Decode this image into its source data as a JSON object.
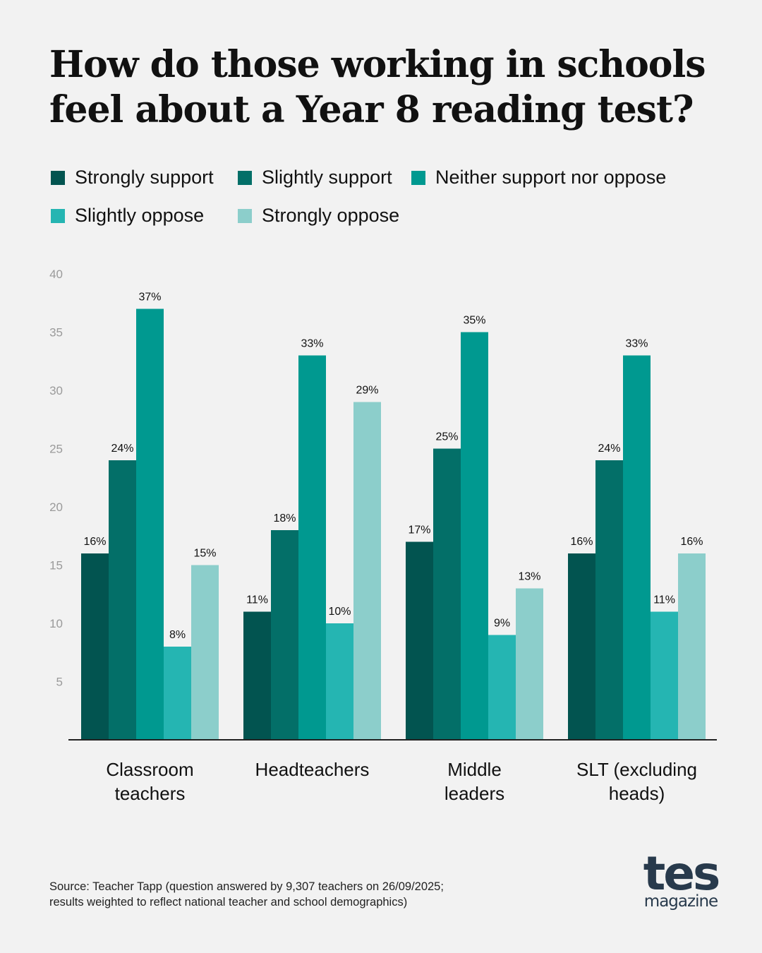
{
  "title_lines": [
    "How do those working in schools",
    "feel about a Year 8 reading test?"
  ],
  "source_lines": [
    "Source: Teacher Tapp (question answered by 9,307 teachers on 26/09/2025;",
    "results weighted to reflect national teacher and school demographics)"
  ],
  "logo": {
    "main": "tes",
    "sub": "magazine",
    "color": "#283a4c"
  },
  "chart_data": {
    "type": "bar",
    "title": "How do those working in schools feel about a Year 8 reading test?",
    "xlabel": "",
    "ylabel": "",
    "ylim": [
      0,
      40
    ],
    "yticks": [
      5,
      10,
      15,
      20,
      25,
      30,
      35,
      40
    ],
    "grid": false,
    "legend_position": "top",
    "categories": [
      [
        "Classroom",
        "teachers"
      ],
      [
        "Headteachers"
      ],
      [
        "Middle",
        "leaders"
      ],
      [
        "SLT (excluding",
        "heads)"
      ]
    ],
    "series": [
      {
        "name": "Strongly support",
        "color": "#025450",
        "values": [
          16,
          11,
          17,
          16
        ]
      },
      {
        "name": "Slightly support",
        "color": "#036f68",
        "values": [
          24,
          18,
          25,
          24
        ]
      },
      {
        "name": "Neither support nor oppose",
        "color": "#009990",
        "values": [
          37,
          33,
          35,
          33
        ]
      },
      {
        "name": "Slightly oppose",
        "color": "#25b5b2",
        "values": [
          8,
          10,
          9,
          11
        ]
      },
      {
        "name": "Strongly oppose",
        "color": "#8ccecb",
        "values": [
          15,
          29,
          13,
          16
        ]
      }
    ],
    "value_suffix": "%"
  }
}
